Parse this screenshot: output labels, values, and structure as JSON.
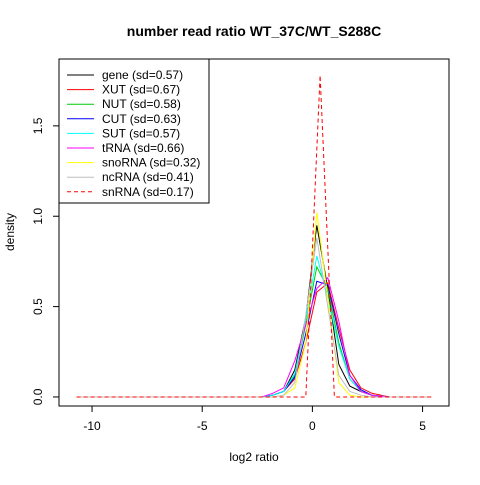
{
  "chart_data": {
    "type": "line",
    "title": "number read ratio WT_37C/WT_S288C",
    "xlabel": "log2 ratio",
    "ylabel": "density",
    "xlim": [
      -11.5,
      6.2
    ],
    "ylim": [
      -0.05,
      1.87
    ],
    "x_ticks": [
      -10,
      -5,
      0,
      5
    ],
    "x_tick_labels": [
      "-10",
      "-5",
      "0",
      "5"
    ],
    "y_ticks": [
      0,
      0.5,
      1.0,
      1.5
    ],
    "y_tick_labels": [
      "0.0",
      "0.5",
      "1.0",
      "1.5"
    ],
    "legend_position": "top-left",
    "grid": false,
    "series": [
      {
        "name": "gene (sd=0.57)",
        "color": "#000000",
        "dash": "solid",
        "x": [
          -10.7,
          -2.3,
          -1.8,
          -1.3,
          -0.8,
          -0.3,
          0.2,
          0.7,
          1.2,
          1.7,
          2.2,
          2.7,
          3.5,
          5.4
        ],
        "y": [
          0,
          0,
          0.01,
          0.03,
          0.15,
          0.44,
          0.95,
          0.6,
          0.18,
          0.06,
          0.03,
          0.01,
          0,
          0
        ]
      },
      {
        "name": "XUT (sd=0.67)",
        "color": "#ff0000",
        "dash": "solid",
        "x": [
          -10.7,
          -2.3,
          -1.8,
          -1.3,
          -0.8,
          -0.3,
          0.2,
          0.7,
          1.2,
          1.7,
          2.2,
          2.7,
          3.5,
          5.4
        ],
        "y": [
          0,
          0,
          0.01,
          0.03,
          0.1,
          0.3,
          0.58,
          0.63,
          0.38,
          0.15,
          0.05,
          0.02,
          0,
          0
        ]
      },
      {
        "name": "NUT (sd=0.58)",
        "color": "#00cc00",
        "dash": "solid",
        "x": [
          -10.7,
          -2.3,
          -1.8,
          -1.3,
          -0.8,
          -0.3,
          0.2,
          0.7,
          1.2,
          1.7,
          2.2,
          2.7,
          3.5,
          5.4
        ],
        "y": [
          0,
          0,
          0.01,
          0.03,
          0.12,
          0.4,
          0.72,
          0.6,
          0.3,
          0.1,
          0.03,
          0.01,
          0,
          0
        ]
      },
      {
        "name": "CUT (sd=0.63)",
        "color": "#0000ff",
        "dash": "solid",
        "x": [
          -10.7,
          -2.3,
          -1.8,
          -1.3,
          -0.8,
          -0.3,
          0.2,
          0.7,
          1.2,
          1.7,
          2.2,
          2.7,
          3.5,
          5.4
        ],
        "y": [
          0,
          0,
          0.01,
          0.03,
          0.11,
          0.35,
          0.64,
          0.62,
          0.35,
          0.12,
          0.04,
          0.01,
          0,
          0
        ]
      },
      {
        "name": "SUT (sd=0.57)",
        "color": "#00ffff",
        "dash": "solid",
        "x": [
          -10.7,
          -2.3,
          -1.8,
          -1.3,
          -0.8,
          -0.3,
          0.2,
          0.7,
          1.2,
          1.7,
          2.2,
          2.7,
          3.5,
          5.4
        ],
        "y": [
          0,
          0,
          0.01,
          0.03,
          0.13,
          0.42,
          0.78,
          0.55,
          0.28,
          0.1,
          0.03,
          0.01,
          0,
          0
        ]
      },
      {
        "name": "tRNA (sd=0.66)",
        "color": "#ff00ff",
        "dash": "solid",
        "x": [
          -10.7,
          -2.3,
          -1.8,
          -1.3,
          -0.8,
          -0.3,
          0.2,
          0.7,
          1.2,
          1.7,
          2.2,
          2.7,
          3.5,
          5.4
        ],
        "y": [
          0,
          0,
          0.02,
          0.05,
          0.2,
          0.4,
          0.6,
          0.66,
          0.42,
          0.12,
          0.03,
          0.01,
          0,
          0
        ]
      },
      {
        "name": "snoRNA (sd=0.32)",
        "color": "#ffff00",
        "dash": "solid",
        "x": [
          -10.7,
          -1.8,
          -1.3,
          -0.8,
          -0.3,
          0.2,
          0.7,
          1.2,
          1.7,
          2.2,
          5.4
        ],
        "y": [
          0,
          0,
          0.01,
          0.05,
          0.3,
          1.02,
          0.55,
          0.08,
          0.01,
          0,
          0
        ]
      },
      {
        "name": "ncRNA (sd=0.41)",
        "color": "#bebebe",
        "dash": "solid",
        "x": [
          -10.7,
          -2.3,
          -1.8,
          -1.3,
          -0.8,
          -0.3,
          0.2,
          0.7,
          1.2,
          1.7,
          2.2,
          2.7,
          3.5,
          5.4
        ],
        "y": [
          0,
          0,
          0,
          0.01,
          0.08,
          0.45,
          0.88,
          0.5,
          0.12,
          0.03,
          0.01,
          0,
          0,
          0
        ]
      },
      {
        "name": "snRNA (sd=0.17)",
        "color": "#ff0000",
        "dash": "dashed",
        "x": [
          -10.7,
          -0.3,
          0.35,
          1.0,
          5.4
        ],
        "y": [
          0,
          0,
          1.78,
          0,
          0
        ]
      }
    ]
  }
}
